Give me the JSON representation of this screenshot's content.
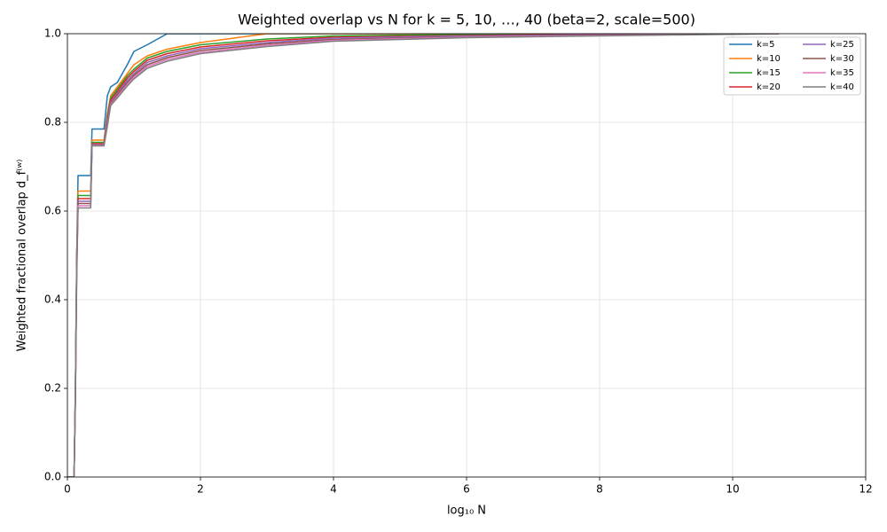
{
  "chart_data": {
    "type": "line",
    "title": "Weighted overlap vs N for k = 5, 10, …, 40 (beta=2, scale=500)",
    "x_label": "log₁₀ N",
    "y_label": "Weighted fractional overlap d_f⁽ʷ⁾",
    "x": [
      0,
      0.1,
      0.12,
      0.14,
      0.16,
      0.35,
      0.37,
      0.55,
      0.6,
      0.65,
      0.75,
      0.9,
      1.0,
      1.2,
      1.5,
      2,
      3,
      4,
      6,
      8,
      10.7
    ],
    "series": [
      {
        "name": "k=5",
        "color": "#1f77b4",
        "values": [
          0,
          0,
          0.2,
          0.5,
          0.68,
          0.68,
          0.785,
          0.785,
          0.86,
          0.88,
          0.89,
          0.93,
          0.96,
          0.975,
          1,
          1,
          1,
          1,
          1,
          1,
          1
        ]
      },
      {
        "name": "k=10",
        "color": "#ff7f0e",
        "values": [
          0,
          0,
          0.2,
          0.5,
          0.645,
          0.645,
          0.76,
          0.76,
          0.82,
          0.86,
          0.88,
          0.91,
          0.93,
          0.95,
          0.965,
          0.98,
          1,
          1,
          1,
          1,
          1
        ]
      },
      {
        "name": "k=15",
        "color": "#2ca02c",
        "values": [
          0,
          0,
          0.2,
          0.5,
          0.635,
          0.635,
          0.755,
          0.755,
          0.815,
          0.855,
          0.875,
          0.905,
          0.92,
          0.945,
          0.96,
          0.975,
          0.988,
          0.995,
          0.998,
          1,
          1
        ]
      },
      {
        "name": "k=20",
        "color": "#d62728",
        "values": [
          0,
          0,
          0.19,
          0.49,
          0.628,
          0.628,
          0.752,
          0.752,
          0.81,
          0.85,
          0.87,
          0.9,
          0.915,
          0.94,
          0.955,
          0.97,
          0.984,
          0.992,
          0.996,
          0.999,
          1
        ]
      },
      {
        "name": "k=25",
        "color": "#9467bd",
        "values": [
          0,
          0,
          0.18,
          0.48,
          0.622,
          0.622,
          0.75,
          0.75,
          0.805,
          0.845,
          0.865,
          0.895,
          0.91,
          0.935,
          0.95,
          0.966,
          0.98,
          0.99,
          0.995,
          0.998,
          1
        ]
      },
      {
        "name": "k=30",
        "color": "#8c564b",
        "values": [
          0,
          0,
          0.18,
          0.47,
          0.617,
          0.617,
          0.749,
          0.749,
          0.8,
          0.842,
          0.862,
          0.89,
          0.906,
          0.93,
          0.946,
          0.962,
          0.977,
          0.987,
          0.993,
          0.997,
          1
        ]
      },
      {
        "name": "k=35",
        "color": "#e377c2",
        "values": [
          0,
          0,
          0.17,
          0.46,
          0.612,
          0.612,
          0.748,
          0.748,
          0.795,
          0.84,
          0.858,
          0.886,
          0.902,
          0.926,
          0.942,
          0.958,
          0.974,
          0.985,
          0.992,
          0.996,
          1
        ]
      },
      {
        "name": "k=40",
        "color": "#7f7f7f",
        "values": [
          0,
          0,
          0.17,
          0.45,
          0.607,
          0.607,
          0.747,
          0.747,
          0.79,
          0.838,
          0.855,
          0.882,
          0.898,
          0.922,
          0.938,
          0.955,
          0.971,
          0.983,
          0.991,
          0.995,
          1
        ]
      }
    ],
    "xlim": [
      0,
      12
    ],
    "xticks": [
      0,
      2,
      4,
      6,
      8,
      10,
      12
    ],
    "ylim": [
      0,
      1
    ],
    "yticks": [
      {
        "value": 0,
        "label": "0.0"
      },
      0.2,
      0.4,
      0.6,
      0.8,
      {
        "value": 1,
        "label": "1.0"
      }
    ],
    "grid": true,
    "legend": "upper-right",
    "legend_columns": 2
  }
}
